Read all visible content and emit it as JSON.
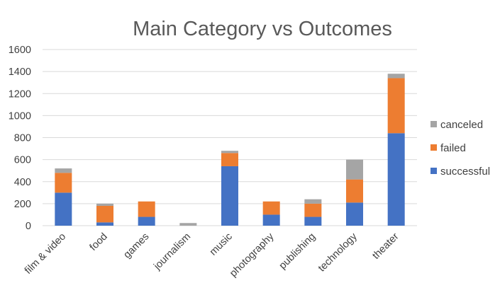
{
  "chart_data": {
    "type": "bar",
    "stacked": true,
    "title": "Main Category vs Outcomes",
    "xlabel": "",
    "ylabel": "",
    "ylim": [
      0,
      1600
    ],
    "yticks": [
      0,
      200,
      400,
      600,
      800,
      1000,
      1200,
      1400,
      1600
    ],
    "grid": true,
    "legend_position": "right",
    "categories": [
      "film & video",
      "food",
      "games",
      "journalism",
      "music",
      "photography",
      "publishing",
      "technology",
      "theater"
    ],
    "series": [
      {
        "name": "successful",
        "color": "#4472c4",
        "values": [
          300,
          30,
          80,
          0,
          540,
          100,
          80,
          210,
          840
        ]
      },
      {
        "name": "failed",
        "color": "#ed7d31",
        "values": [
          180,
          150,
          140,
          0,
          120,
          120,
          120,
          210,
          500
        ]
      },
      {
        "name": "canceled",
        "color": "#a5a5a5",
        "values": [
          40,
          20,
          0,
          24,
          20,
          0,
          40,
          180,
          40
        ]
      }
    ]
  }
}
